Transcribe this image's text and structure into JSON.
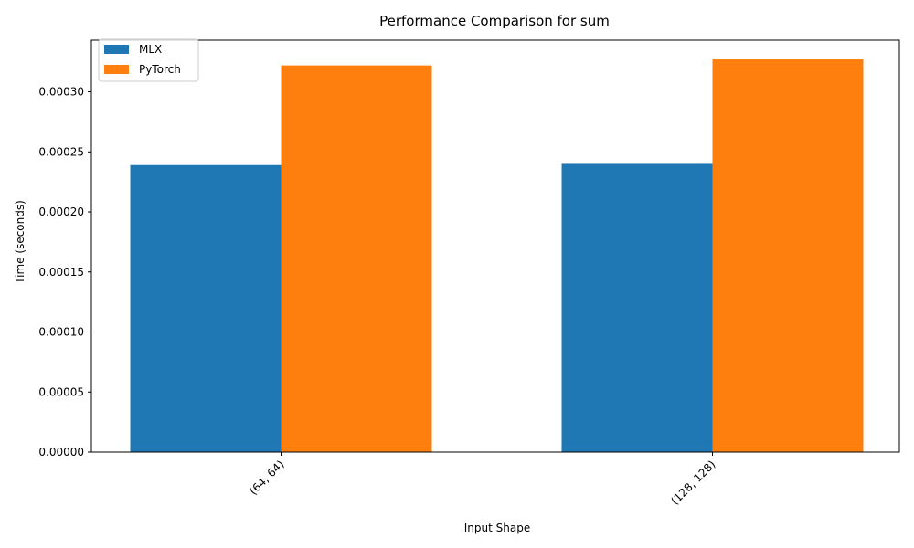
{
  "chart_data": {
    "type": "bar",
    "title": "Performance Comparison for sum",
    "xlabel": "Input Shape",
    "ylabel": "Time (seconds)",
    "categories": [
      "(64, 64)",
      "(128, 128)"
    ],
    "series": [
      {
        "name": "MLX",
        "values": [
          0.000239,
          0.00024
        ],
        "color": "#1f77b4"
      },
      {
        "name": "PyTorch",
        "values": [
          0.000322,
          0.000327
        ],
        "color": "#ff7f0e"
      }
    ],
    "ylim": [
      0,
      0.000343
    ],
    "yticks": [
      0,
      5e-05,
      0.0001,
      0.00015,
      0.0002,
      0.00025,
      0.0003
    ],
    "ytick_labels": [
      "0.00000",
      "0.00005",
      "0.00010",
      "0.00015",
      "0.00020",
      "0.00025",
      "0.00030"
    ],
    "legend_position": "upper-left",
    "grid": false
  }
}
